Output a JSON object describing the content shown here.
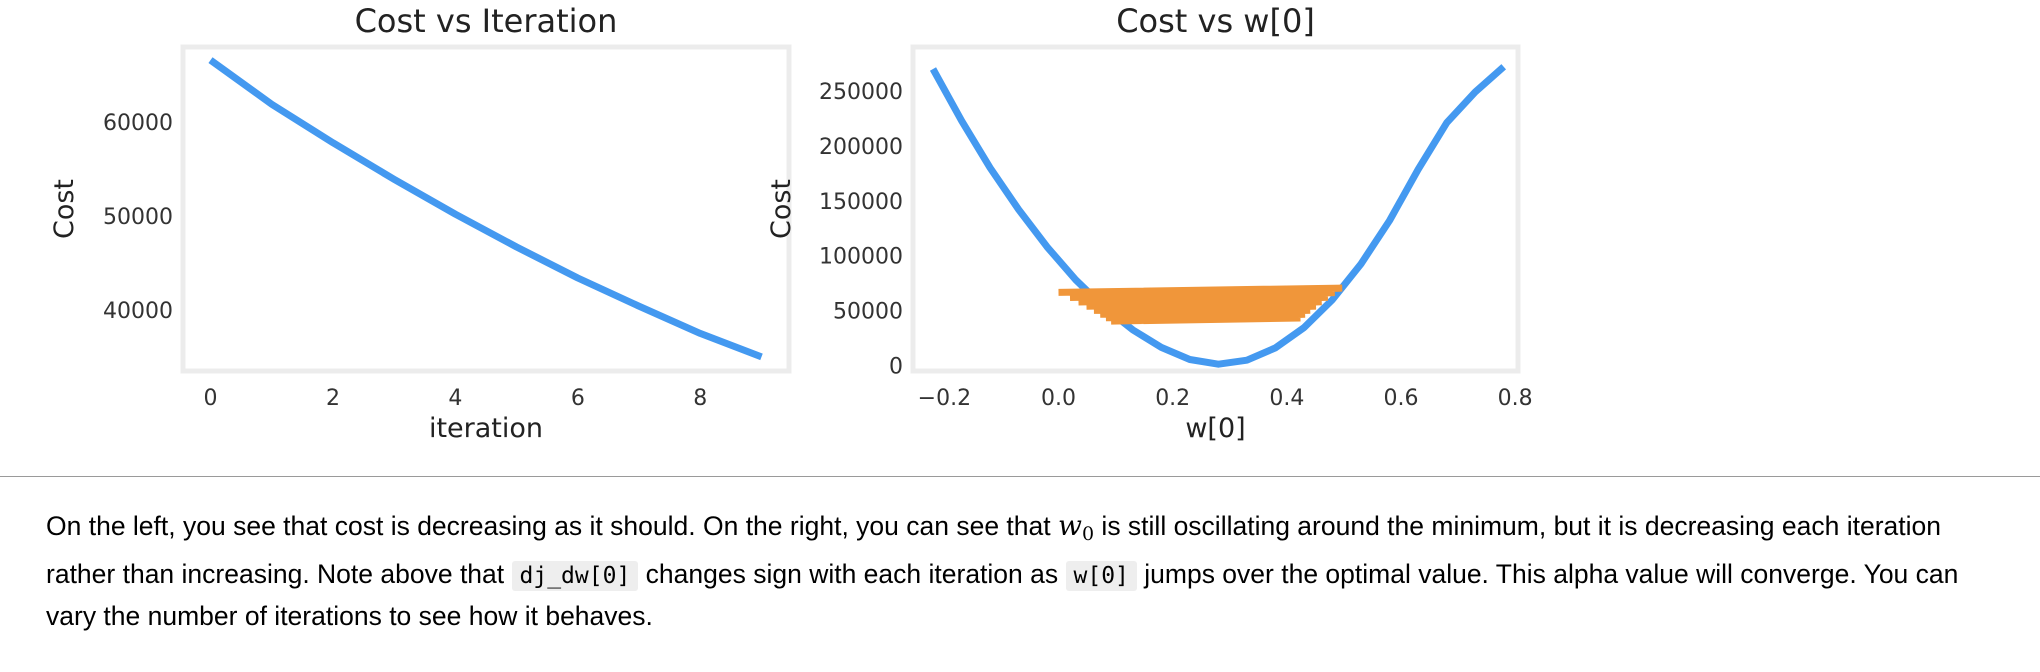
{
  "chart_data": [
    {
      "type": "line",
      "title": "Cost vs Iteration",
      "xlabel": "iteration",
      "ylabel": "Cost",
      "x": [
        0,
        1,
        2,
        3,
        4,
        5,
        6,
        7,
        8,
        9
      ],
      "series": [
        {
          "values": [
            66600,
            61900,
            57800,
            53900,
            50200,
            46700,
            43400,
            40400,
            37500,
            35000
          ]
        }
      ],
      "xlim": [
        -0.45,
        9.45
      ],
      "ylim": [
        33500,
        68000
      ],
      "xticks": [
        0,
        2,
        4,
        6,
        8
      ],
      "xtick_labels": [
        "0",
        "2",
        "4",
        "6",
        "8"
      ],
      "yticks": [
        40000,
        50000,
        60000
      ],
      "ytick_labels": [
        "40000",
        "50000",
        "60000"
      ],
      "colors": {
        "line": "#4499f0",
        "frame": "#ececec"
      }
    },
    {
      "type": "line",
      "title": "Cost vs w[0]",
      "xlabel": "w[0]",
      "ylabel": "Cost",
      "series": [
        {
          "x": [
            -0.22,
            -0.17,
            -0.12,
            -0.07,
            -0.02,
            0.03,
            0.08,
            0.13,
            0.18,
            0.23,
            0.28,
            0.33,
            0.38,
            0.43,
            0.48,
            0.53,
            0.58,
            0.63,
            0.68,
            0.73,
            0.78
          ],
          "values": [
            270000,
            223000,
            180000,
            142000,
            108000,
            78000,
            53000,
            32500,
            16500,
            5500,
            1200,
            4800,
            16000,
            34500,
            60000,
            92500,
            132000,
            178500,
            221000,
            249000,
            272000
          ]
        },
        {
          "x": [
            0.0,
            0.497,
            0.02,
            0.484,
            0.035,
            0.472,
            0.049,
            0.461,
            0.062,
            0.451,
            0.073,
            0.441,
            0.083,
            0.432,
            0.092,
            0.424
          ],
          "values": [
            66600,
            70500,
            61900,
            66400,
            57800,
            62200,
            53900,
            58100,
            50200,
            54100,
            46700,
            50300,
            43400,
            46600,
            40400,
            43300
          ]
        }
      ],
      "xlim": [
        -0.255,
        0.805
      ],
      "ylim": [
        -5000,
        290000
      ],
      "xticks": [
        -0.2,
        0.0,
        0.2,
        0.4,
        0.6,
        0.8
      ],
      "xtick_labels": [
        "−0.2",
        "0.0",
        "0.2",
        "0.4",
        "0.6",
        "0.8"
      ],
      "yticks": [
        0,
        50000,
        100000,
        150000,
        200000,
        250000
      ],
      "ytick_labels": [
        "0",
        "50000",
        "100000",
        "150000",
        "200000",
        "250000"
      ],
      "colors": {
        "curve": "#4499f0",
        "path": "#f0963a",
        "frame": "#ececec"
      }
    }
  ],
  "note": {
    "s1": "On the left, you see that cost is decreasing as it should. On the right, you can see that ",
    "math_var": "w",
    "math_sub": "0",
    "s2": " is still oscillating around the minimum, but it is decreasing each iteration rather than increasing. Note above that ",
    "code1": "dj_dw[0]",
    "s3": " changes sign with each iteration as ",
    "code2": "w[0]",
    "s4": " jumps over the optimal value. This alpha value will converge. You can vary the number of iterations to see how it behaves."
  }
}
